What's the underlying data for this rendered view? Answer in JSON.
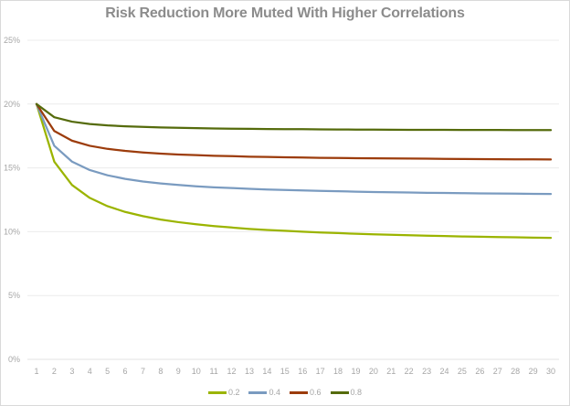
{
  "chart_data": {
    "type": "line",
    "title": "Risk Reduction More Muted With Higher Correlations",
    "xlabel": "",
    "ylabel": "",
    "x": [
      1,
      2,
      3,
      4,
      5,
      6,
      7,
      8,
      9,
      10,
      11,
      12,
      13,
      14,
      15,
      16,
      17,
      18,
      19,
      20,
      21,
      22,
      23,
      24,
      25,
      26,
      27,
      28,
      29,
      30
    ],
    "x_tick_labels": [
      "1",
      "2",
      "3",
      "4",
      "5",
      "6",
      "7",
      "8",
      "9",
      "10",
      "11",
      "12",
      "13",
      "14",
      "15",
      "16",
      "17",
      "18",
      "19",
      "20",
      "21",
      "22",
      "23",
      "24",
      "25",
      "26",
      "27",
      "28",
      "29",
      "30"
    ],
    "ylim": [
      0,
      25
    ],
    "y_ticks": [
      0,
      5,
      10,
      15,
      20,
      25
    ],
    "y_tick_labels": [
      "0%",
      "5%",
      "10%",
      "15%",
      "20%",
      "25%"
    ],
    "grid": "horizontal",
    "legend_position": "bottom",
    "series": [
      {
        "name": "0.2",
        "color": "#9bb400",
        "values": [
          20.0,
          15.49,
          13.66,
          12.65,
          12.0,
          11.55,
          11.22,
          10.95,
          10.75,
          10.58,
          10.44,
          10.33,
          10.22,
          10.14,
          10.07,
          10.0,
          9.94,
          9.89,
          9.84,
          9.8,
          9.76,
          9.72,
          9.69,
          9.66,
          9.63,
          9.61,
          9.58,
          9.56,
          9.54,
          9.52
        ]
      },
      {
        "name": "0.4",
        "color": "#7a9bc0",
        "values": [
          20.0,
          16.73,
          15.49,
          14.83,
          14.42,
          14.14,
          13.93,
          13.78,
          13.66,
          13.56,
          13.48,
          13.42,
          13.36,
          13.31,
          13.27,
          13.23,
          13.2,
          13.17,
          13.14,
          13.11,
          13.09,
          13.07,
          13.05,
          13.04,
          13.02,
          13.0,
          12.99,
          12.98,
          12.97,
          12.96
        ]
      },
      {
        "name": "0.6",
        "color": "#9c3c0c",
        "values": [
          20.0,
          17.89,
          17.13,
          16.73,
          16.49,
          16.33,
          16.21,
          16.12,
          16.05,
          16.0,
          15.95,
          15.92,
          15.88,
          15.86,
          15.83,
          15.81,
          15.79,
          15.78,
          15.76,
          15.75,
          15.74,
          15.73,
          15.72,
          15.71,
          15.7,
          15.69,
          15.68,
          15.67,
          15.67,
          15.66
        ]
      },
      {
        "name": "0.8",
        "color": "#556b0c",
        "values": [
          20.0,
          18.97,
          18.62,
          18.44,
          18.33,
          18.26,
          18.21,
          18.17,
          18.14,
          18.11,
          18.09,
          18.07,
          18.06,
          18.04,
          18.03,
          18.03,
          18.02,
          18.01,
          18.0,
          18.0,
          17.99,
          17.98,
          17.98,
          17.98,
          17.97,
          17.97,
          17.97,
          17.96,
          17.96,
          17.96
        ]
      }
    ]
  }
}
